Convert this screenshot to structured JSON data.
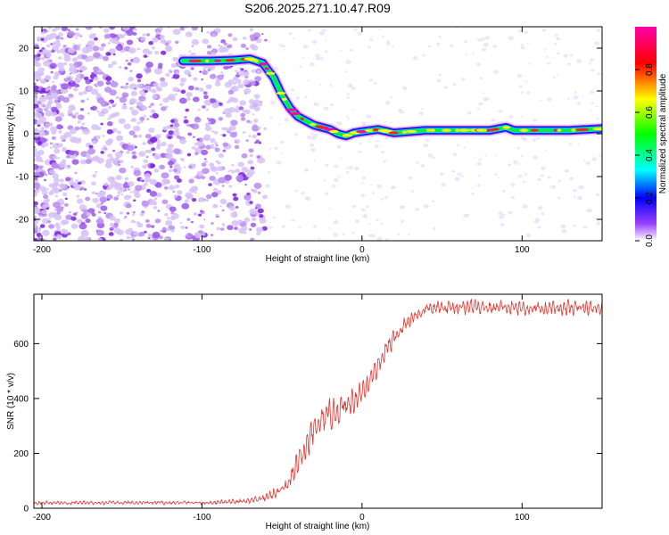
{
  "title": "S206.2025.271.10.47.R09",
  "chart_data": [
    {
      "type": "heatmap",
      "name": "spectrogram",
      "xlabel": "Height of straight line (km)",
      "ylabel": "Frequency (Hz)",
      "xlim": [
        -205,
        150
      ],
      "ylim": [
        -25,
        25
      ],
      "xticks": [
        -200,
        -100,
        0,
        100
      ],
      "yticks": [
        -20,
        -10,
        0,
        10,
        20
      ],
      "noise_region_x": [
        -205,
        -60
      ],
      "ridge": {
        "x": [
          -112,
          -95,
          -80,
          -70,
          -62,
          -55,
          -50,
          -45,
          -40,
          -35,
          -30,
          -25,
          -20,
          -15,
          -10,
          -5,
          0,
          10,
          20,
          40,
          60,
          80,
          90,
          95,
          110,
          130,
          150
        ],
        "freq": [
          17,
          17,
          17.2,
          17.5,
          16.5,
          13,
          9,
          6,
          4,
          3,
          2,
          1.5,
          1,
          0,
          -0.5,
          0.2,
          0.5,
          1,
          0.2,
          0.8,
          0.8,
          0.8,
          1.5,
          0.8,
          0.8,
          0.8,
          1.2
        ]
      },
      "colorbar": {
        "label": "Normalized spectral amplitude",
        "ticks": [
          0.0,
          0.2,
          0.4,
          0.6,
          0.8
        ],
        "range": [
          0,
          1
        ],
        "colors": [
          "#ffffff",
          "#8000ff",
          "#0000ff",
          "#00ffff",
          "#00ff00",
          "#ffff00",
          "#ff0000",
          "#ff00ff"
        ]
      }
    },
    {
      "type": "line",
      "name": "snr",
      "xlabel": "Height of straight line (km)",
      "ylabel": "SNR (10 * v/v)",
      "xlim": [
        -205,
        150
      ],
      "ylim": [
        0,
        780
      ],
      "xticks": [
        -200,
        -100,
        0,
        100
      ],
      "yticks": [
        0,
        200,
        400,
        600
      ],
      "color": "#e8302a",
      "envelope": {
        "x": [
          -205,
          -150,
          -100,
          -70,
          -60,
          -50,
          -45,
          -40,
          -35,
          -30,
          -25,
          -20,
          -15,
          -10,
          -5,
          0,
          5,
          10,
          15,
          20,
          25,
          30,
          35,
          40,
          50,
          60,
          80,
          100,
          120,
          150
        ],
        "mean": [
          20,
          20,
          20,
          25,
          40,
          70,
          100,
          160,
          220,
          280,
          320,
          340,
          360,
          370,
          400,
          430,
          470,
          520,
          580,
          620,
          660,
          690,
          710,
          725,
          730,
          735,
          730,
          730,
          730,
          730
        ],
        "spread": [
          10,
          10,
          10,
          15,
          25,
          40,
          60,
          80,
          80,
          80,
          80,
          80,
          80,
          80,
          80,
          80,
          60,
          60,
          60,
          50,
          50,
          40,
          40,
          40,
          40,
          40,
          40,
          40,
          40,
          40
        ]
      }
    }
  ]
}
